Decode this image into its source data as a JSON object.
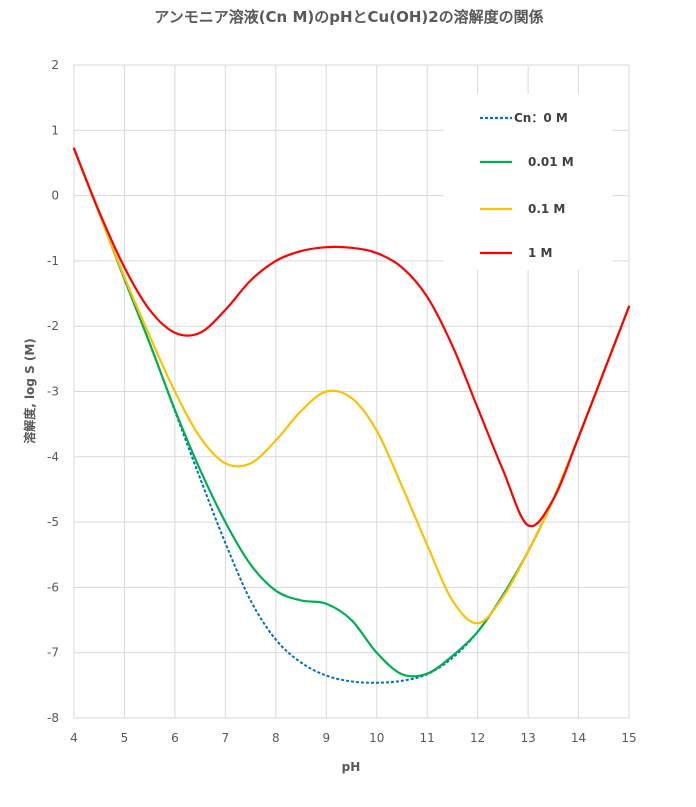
{
  "chart_data": {
    "type": "line",
    "title": "アンモニア溶液(Cn M)のpHとCu(OH)2の溶解度の関係",
    "xlabel": "pH",
    "ylabel": "溶解度, log S (M)",
    "xlim": [
      4,
      15
    ],
    "ylim": [
      -8,
      2
    ],
    "xticks": [
      4,
      5,
      6,
      7,
      8,
      9,
      10,
      11,
      12,
      13,
      14,
      15
    ],
    "yticks": [
      2,
      1,
      0,
      -1,
      -2,
      -3,
      -4,
      -5,
      -6,
      -7,
      -8
    ],
    "xtick_labels": [
      "4",
      "5",
      "6",
      "7",
      "8",
      "9",
      "10",
      "11",
      "12",
      "13",
      "14",
      "15"
    ],
    "ytick_labels": [
      "2",
      "1",
      "0",
      "-1",
      "-2",
      "-3",
      "-4",
      "-5",
      "-6",
      "-7",
      "-8"
    ],
    "grid": true,
    "legend_position": "top-right",
    "series": [
      {
        "name": "Cn：0 M",
        "color": "#0070C0",
        "dash": "dashed",
        "x": [
          4,
          4.5,
          5,
          5.5,
          6,
          6.5,
          7,
          7.5,
          8,
          8.5,
          9,
          9.5,
          10,
          10.5,
          11,
          11.5,
          12,
          12.5,
          13,
          13.5,
          14,
          14.5,
          15
        ],
        "y": [
          0.72,
          -0.27,
          -1.28,
          -2.26,
          -3.3,
          -4.33,
          -5.32,
          -6.2,
          -6.8,
          -7.15,
          -7.35,
          -7.44,
          -7.46,
          -7.43,
          -7.33,
          -7.08,
          -6.68,
          -6.12,
          -5.45,
          -4.65,
          -3.7,
          -2.7,
          -1.7
        ]
      },
      {
        "name": "0.01 M",
        "color": "#00B050",
        "dash": "solid",
        "x": [
          4,
          4.5,
          5,
          5.5,
          6,
          6.5,
          7,
          7.5,
          8,
          8.5,
          9,
          9.5,
          10,
          10.5,
          11,
          11.5,
          12,
          12.5,
          13,
          13.5,
          14,
          14.5,
          15
        ],
        "y": [
          0.72,
          -0.27,
          -1.28,
          -2.26,
          -3.28,
          -4.2,
          -5.0,
          -5.65,
          -6.05,
          -6.2,
          -6.25,
          -6.5,
          -7.0,
          -7.33,
          -7.32,
          -7.05,
          -6.68,
          -6.12,
          -5.45,
          -4.65,
          -3.7,
          -2.7,
          -1.7
        ]
      },
      {
        "name": "0.1 M",
        "color": "#FFC000",
        "dash": "solid",
        "x": [
          4,
          4.5,
          5,
          5.5,
          6,
          6.5,
          7,
          7.5,
          8,
          8.5,
          9,
          9.5,
          10,
          10.5,
          11,
          11.5,
          12,
          12.5,
          13,
          13.5,
          14,
          14.5,
          15
        ],
        "y": [
          0.72,
          -0.27,
          -1.25,
          -2.15,
          -3.0,
          -3.7,
          -4.1,
          -4.1,
          -3.75,
          -3.3,
          -3.0,
          -3.1,
          -3.6,
          -4.45,
          -5.35,
          -6.2,
          -6.55,
          -6.15,
          -5.45,
          -4.65,
          -3.7,
          -2.7,
          -1.7
        ]
      },
      {
        "name": "1 M",
        "color": "#FF0000",
        "dash": "solid",
        "x": [
          4,
          4.5,
          5,
          5.5,
          6,
          6.5,
          7,
          7.5,
          8,
          8.5,
          9,
          9.5,
          10,
          10.5,
          11,
          11.5,
          12,
          12.5,
          13,
          13.5,
          14,
          14.5,
          15
        ],
        "y": [
          0.72,
          -0.25,
          -1.1,
          -1.75,
          -2.1,
          -2.1,
          -1.75,
          -1.3,
          -1.0,
          -0.85,
          -0.79,
          -0.8,
          -0.88,
          -1.1,
          -1.55,
          -2.3,
          -3.25,
          -4.2,
          -5.05,
          -4.65,
          -3.7,
          -2.7,
          -1.7
        ]
      }
    ]
  }
}
